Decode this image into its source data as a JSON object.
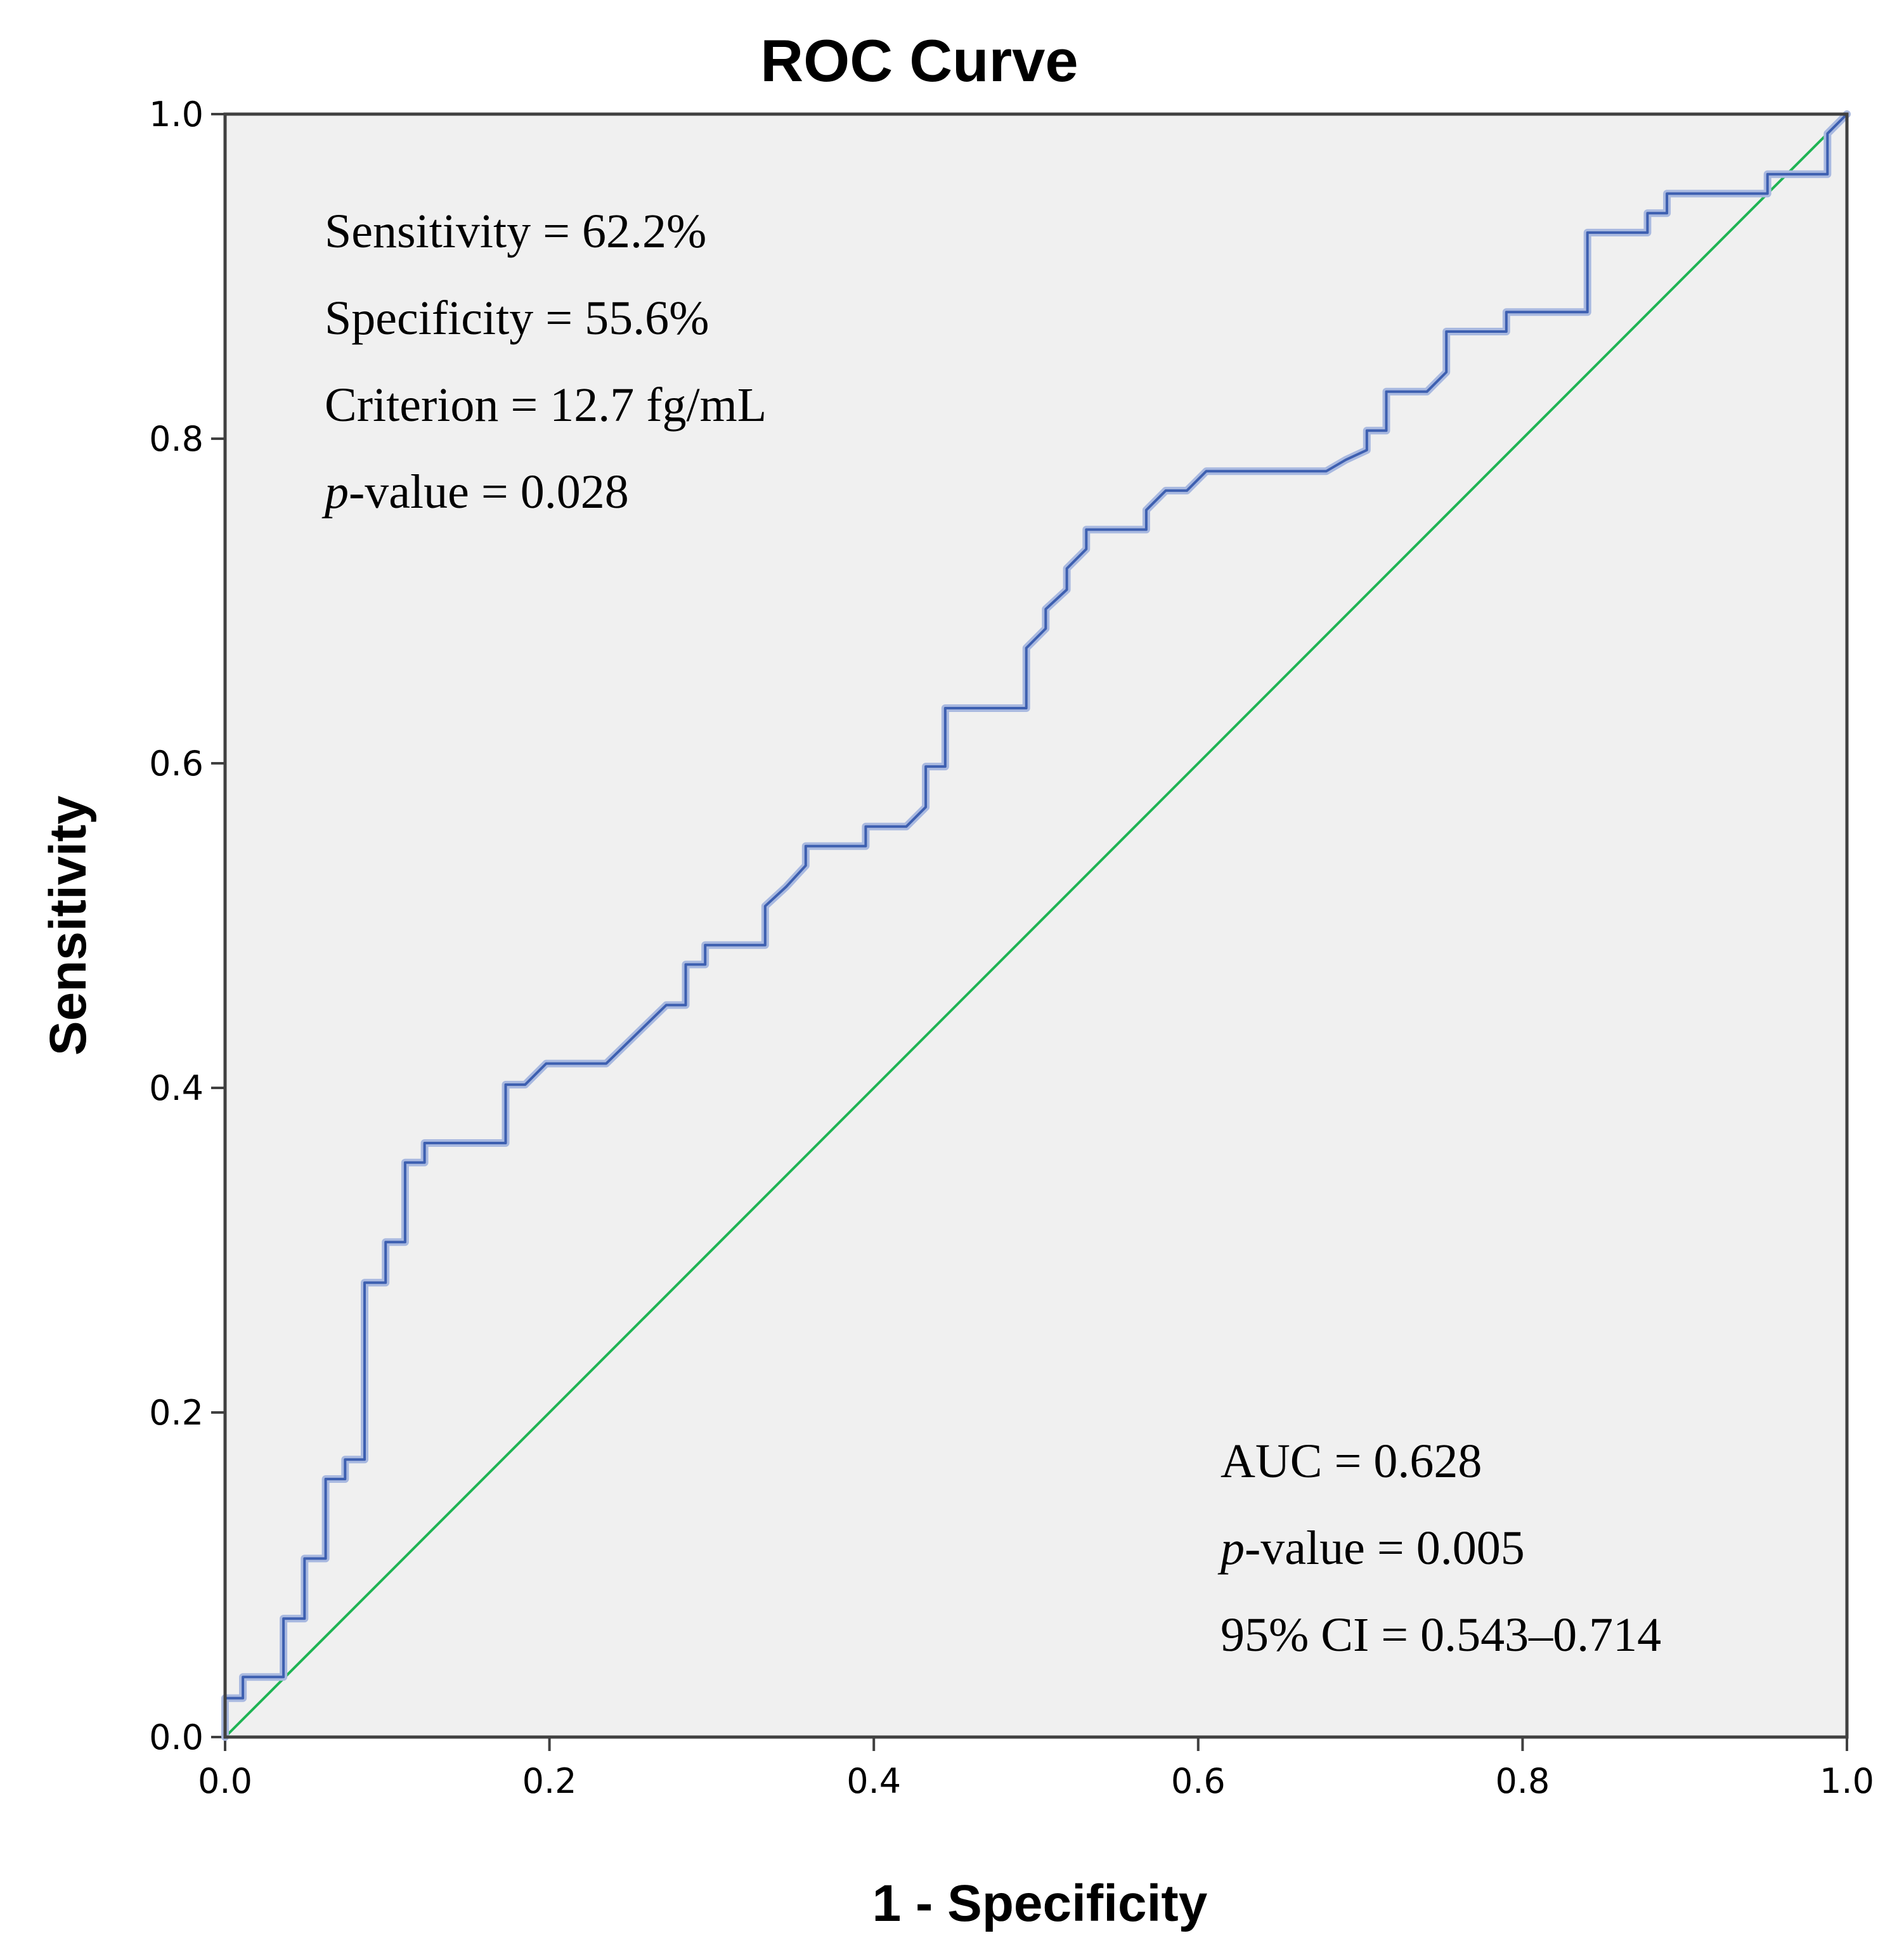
{
  "chart_data": {
    "type": "line",
    "title": "ROC Curve",
    "xlabel": "1 - Specificity",
    "ylabel": "Sensitivity",
    "xlim": [
      0,
      1
    ],
    "ylim": [
      0,
      1
    ],
    "xticks": [
      "0.0",
      "0.2",
      "0.4",
      "0.6",
      "0.8",
      "1.0"
    ],
    "yticks": [
      "0.0",
      "0.2",
      "0.4",
      "0.6",
      "0.8",
      "1.0"
    ],
    "background_color": "#f0f0f0",
    "series": [
      {
        "name": "ROC curve",
        "color": "#3d5fb0",
        "x": [
          0,
          0,
          0.011,
          0.011,
          0.036,
          0.036,
          0.049,
          0.049,
          0.062,
          0.062,
          0.074,
          0.074,
          0.086,
          0.086,
          0.099,
          0.099,
          0.111,
          0.111,
          0.123,
          0.123,
          0.173,
          0.173,
          0.185,
          0.198,
          0.235,
          0.272,
          0.284,
          0.284,
          0.296,
          0.296,
          0.333,
          0.333,
          0.346,
          0.358,
          0.358,
          0.395,
          0.395,
          0.42,
          0.432,
          0.432,
          0.444,
          0.444,
          0.494,
          0.494,
          0.506,
          0.506,
          0.519,
          0.519,
          0.531,
          0.531,
          0.543,
          0.568,
          0.568,
          0.58,
          0.593,
          0.605,
          0.679,
          0.691,
          0.704,
          0.704,
          0.716,
          0.716,
          0.741,
          0.753,
          0.753,
          0.79,
          0.79,
          0.84,
          0.84,
          0.877,
          0.877,
          0.889,
          0.889,
          0.951,
          0.951,
          0.988,
          0.988,
          1.0
        ],
        "y": [
          0,
          0.024,
          0.024,
          0.037,
          0.037,
          0.073,
          0.073,
          0.11,
          0.11,
          0.159,
          0.159,
          0.171,
          0.171,
          0.28,
          0.28,
          0.305,
          0.305,
          0.354,
          0.354,
          0.366,
          0.366,
          0.402,
          0.402,
          0.415,
          0.415,
          0.451,
          0.451,
          0.476,
          0.476,
          0.488,
          0.488,
          0.512,
          0.524,
          0.537,
          0.549,
          0.549,
          0.561,
          0.561,
          0.573,
          0.598,
          0.598,
          0.634,
          0.634,
          0.671,
          0.683,
          0.695,
          0.707,
          0.72,
          0.732,
          0.744,
          0.744,
          0.744,
          0.756,
          0.768,
          0.768,
          0.78,
          0.78,
          0.787,
          0.793,
          0.805,
          0.805,
          0.829,
          0.829,
          0.841,
          0.866,
          0.866,
          0.878,
          0.878,
          0.927,
          0.927,
          0.939,
          0.939,
          0.951,
          0.951,
          0.963,
          0.963,
          0.988,
          1.0
        ]
      },
      {
        "name": "Reference line",
        "color": "#1fb454",
        "x": [
          0,
          1
        ],
        "y": [
          0,
          1
        ]
      }
    ],
    "annotations_top": [
      {
        "italic": "",
        "text": "Sensitivity = 62.2%"
      },
      {
        "italic": "",
        "text": "Specificity = 55.6%"
      },
      {
        "italic": "",
        "text": "Criterion = 12.7 fg/mL"
      },
      {
        "italic": "p",
        "text": "-value = 0.028"
      }
    ],
    "annotations_bottom": [
      {
        "italic": "",
        "text": "AUC = 0.628"
      },
      {
        "italic": "p",
        "text": "-value = 0.005"
      },
      {
        "italic": "",
        "text": "95% CI = 0.543–0.714"
      }
    ]
  }
}
